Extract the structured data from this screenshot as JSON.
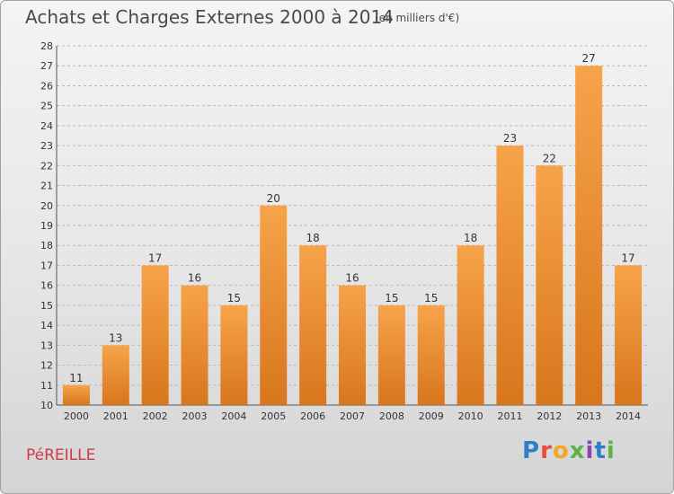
{
  "header": {
    "title": "Achats et Charges Externes 2000 à 2014",
    "subtitle": "(en milliers d'€)"
  },
  "footer": {
    "commune": "PéREILLE",
    "logo": "Proxiti"
  },
  "colors": {
    "bar_top": "#f7a34a",
    "bar_bottom": "#d8761c",
    "grid": "#b8b8b8",
    "commune_text": "#d0384a"
  },
  "chart_data": {
    "type": "bar",
    "title": "Achats et Charges Externes 2000 à 2014",
    "subtitle": "(en milliers d'€)",
    "xlabel": "",
    "ylabel": "",
    "categories": [
      "2000",
      "2001",
      "2002",
      "2003",
      "2004",
      "2005",
      "2006",
      "2007",
      "2008",
      "2009",
      "2010",
      "2011",
      "2012",
      "2013",
      "2014"
    ],
    "values": [
      11,
      13,
      17,
      16,
      15,
      20,
      18,
      16,
      15,
      15,
      18,
      23,
      22,
      27,
      17
    ],
    "ylim": [
      10,
      28
    ],
    "yticks": [
      10,
      11,
      12,
      13,
      14,
      15,
      16,
      17,
      18,
      19,
      20,
      21,
      22,
      23,
      24,
      25,
      26,
      27,
      28
    ],
    "grid": "horizontal dashed",
    "legend": "none"
  }
}
